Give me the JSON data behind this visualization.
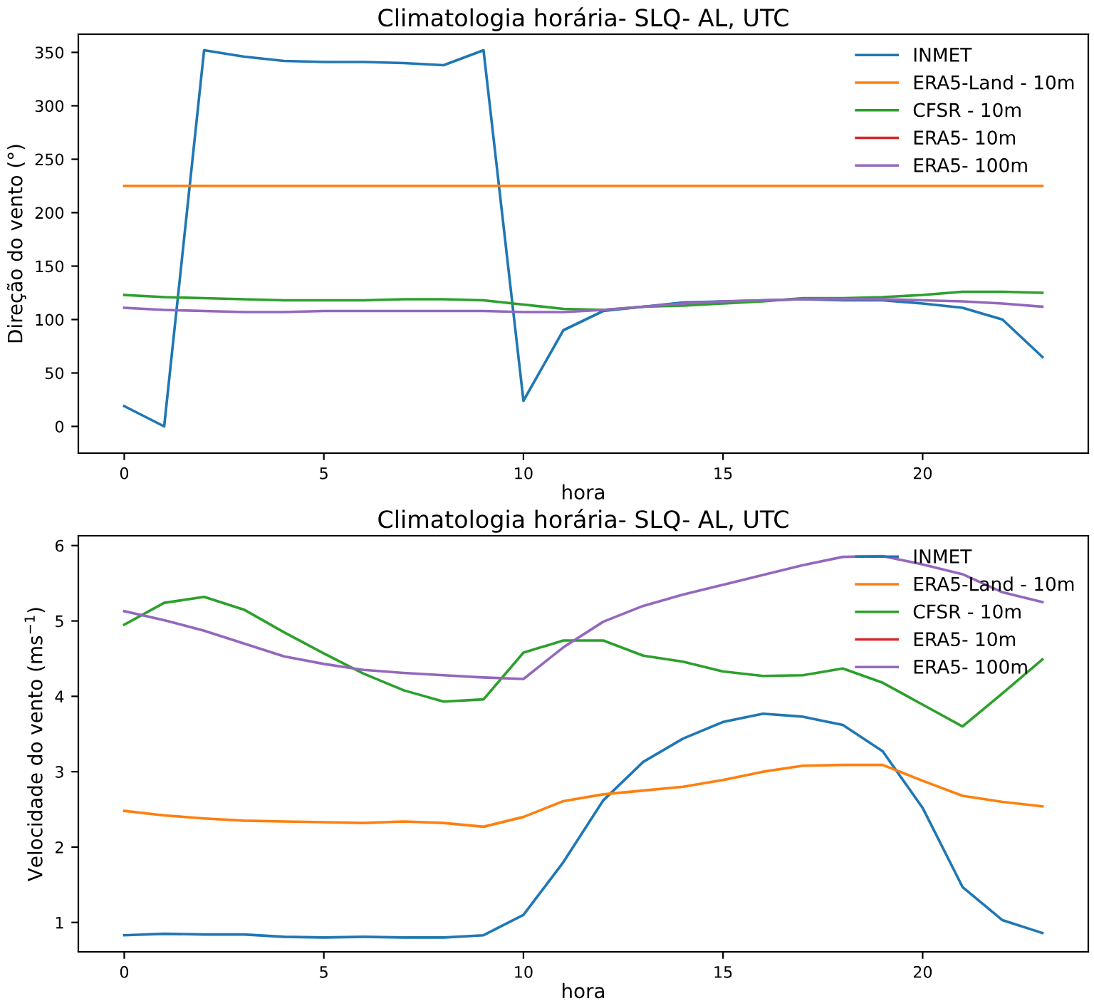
{
  "chart_data": [
    {
      "type": "line",
      "title": "Climatologia horária- SLQ- AL, UTC",
      "xlabel": "hora",
      "ylabel": "Direção do vento (°)",
      "x": [
        0,
        1,
        2,
        3,
        4,
        5,
        6,
        7,
        8,
        9,
        10,
        11,
        12,
        13,
        14,
        15,
        16,
        17,
        18,
        19,
        20,
        21,
        22,
        23
      ],
      "xlim": [
        -1.15,
        24.15
      ],
      "xticks": [
        0,
        5,
        10,
        15,
        20
      ],
      "ylim": [
        -25,
        367
      ],
      "yticks": [
        0,
        50,
        100,
        150,
        200,
        250,
        300,
        350
      ],
      "legend": "top right",
      "grid": false,
      "series": [
        {
          "name": "INMET",
          "color": "#1f77b4",
          "values": [
            19,
            0,
            352,
            346,
            342,
            341,
            341,
            340,
            338,
            352,
            24,
            90,
            108,
            112,
            116,
            117,
            118,
            119,
            118,
            118,
            115,
            111,
            100,
            65
          ]
        },
        {
          "name": "ERA5-Land - 10m",
          "color": "#ff7f0e",
          "values": [
            225,
            225,
            225,
            225,
            225,
            225,
            225,
            225,
            225,
            225,
            225,
            225,
            225,
            225,
            225,
            225,
            225,
            225,
            225,
            225,
            225,
            225,
            225,
            225
          ]
        },
        {
          "name": "CFSR - 10m",
          "color": "#2ca02c",
          "values": [
            123,
            121,
            120,
            119,
            118,
            118,
            118,
            119,
            119,
            118,
            114,
            110,
            109,
            112,
            113,
            115,
            117,
            120,
            120,
            121,
            123,
            126,
            126,
            125
          ]
        },
        {
          "name": "ERA5- 10m",
          "color": "#d62728",
          "values": [
            null,
            null,
            null,
            null,
            null,
            null,
            null,
            null,
            null,
            null,
            null,
            null,
            null,
            null,
            null,
            null,
            null,
            null,
            null,
            null,
            null,
            null,
            null,
            null
          ]
        },
        {
          "name": "ERA5- 100m",
          "color": "#9467bd",
          "values": [
            111,
            109,
            108,
            107,
            107,
            108,
            108,
            108,
            108,
            108,
            107,
            107,
            109,
            112,
            115,
            117,
            118,
            119,
            119,
            119,
            118,
            117,
            115,
            112
          ]
        }
      ]
    },
    {
      "type": "line",
      "title": "Climatologia horária- SLQ- AL, UTC",
      "xlabel": "hora",
      "ylabel": "Velocidade do vento (ms$^{−1}$)",
      "x": [
        0,
        1,
        2,
        3,
        4,
        5,
        6,
        7,
        8,
        9,
        10,
        11,
        12,
        13,
        14,
        15,
        16,
        17,
        18,
        19,
        20,
        21,
        22,
        23
      ],
      "xlim": [
        -1.15,
        24.15
      ],
      "xticks": [
        0,
        5,
        10,
        15,
        20
      ],
      "ylim": [
        0.61,
        6.13
      ],
      "yticks": [
        1,
        2,
        3,
        4,
        5,
        6
      ],
      "legend": "top right",
      "grid": false,
      "series": [
        {
          "name": "INMET",
          "color": "#1f77b4",
          "values": [
            0.83,
            0.85,
            0.84,
            0.84,
            0.81,
            0.8,
            0.81,
            0.8,
            0.8,
            0.83,
            1.1,
            1.8,
            2.62,
            3.13,
            3.44,
            3.66,
            3.77,
            3.73,
            3.62,
            3.27,
            2.52,
            1.47,
            1.03,
            0.86
          ]
        },
        {
          "name": "ERA5-Land - 10m",
          "color": "#ff7f0e",
          "values": [
            2.48,
            2.42,
            2.38,
            2.35,
            2.34,
            2.33,
            2.32,
            2.34,
            2.32,
            2.27,
            2.4,
            2.61,
            2.7,
            2.75,
            2.8,
            2.89,
            3.0,
            3.08,
            3.09,
            3.09,
            2.88,
            2.68,
            2.6,
            2.54
          ]
        },
        {
          "name": "CFSR - 10m",
          "color": "#2ca02c",
          "values": [
            4.95,
            5.24,
            5.32,
            5.15,
            4.85,
            4.57,
            4.3,
            4.08,
            3.93,
            3.96,
            4.58,
            4.74,
            4.74,
            4.54,
            4.46,
            4.33,
            4.27,
            4.28,
            4.37,
            4.18,
            3.89,
            3.6,
            4.04,
            4.49
          ]
        },
        {
          "name": "ERA5- 10m",
          "color": "#d62728",
          "values": [
            null,
            null,
            null,
            null,
            null,
            null,
            null,
            null,
            null,
            null,
            null,
            null,
            null,
            null,
            null,
            null,
            null,
            null,
            null,
            null,
            null,
            null,
            null,
            null
          ]
        },
        {
          "name": "ERA5- 100m",
          "color": "#9467bd",
          "values": [
            5.13,
            5.01,
            4.87,
            4.7,
            4.53,
            4.43,
            4.35,
            4.31,
            4.28,
            4.25,
            4.23,
            4.65,
            4.99,
            5.2,
            5.35,
            5.48,
            5.61,
            5.74,
            5.85,
            5.86,
            5.75,
            5.62,
            5.38,
            5.25
          ]
        }
      ]
    }
  ]
}
